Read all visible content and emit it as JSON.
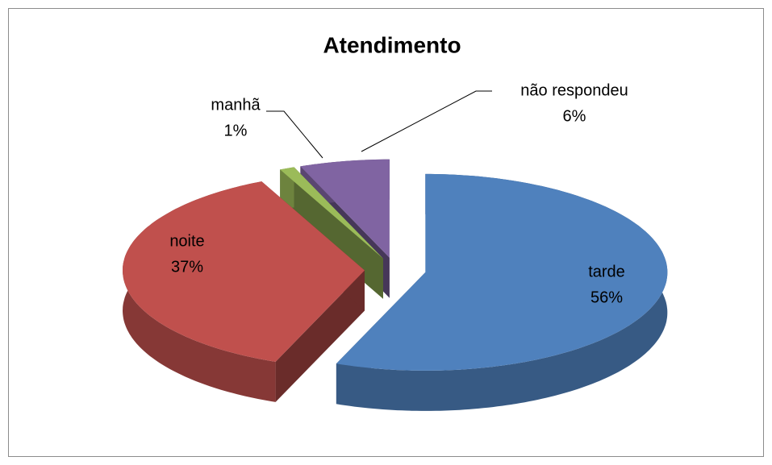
{
  "chart_data": {
    "type": "pie",
    "title": "Atendimento",
    "categories": [
      "tarde",
      "noite",
      "manhã",
      "não respondeu"
    ],
    "values": [
      56,
      37,
      1,
      6
    ],
    "value_labels": [
      "56%",
      "37%",
      "1%",
      "6%"
    ],
    "colors": [
      "#4f81bd",
      "#c0504d",
      "#9bbb59",
      "#8064a2"
    ]
  }
}
